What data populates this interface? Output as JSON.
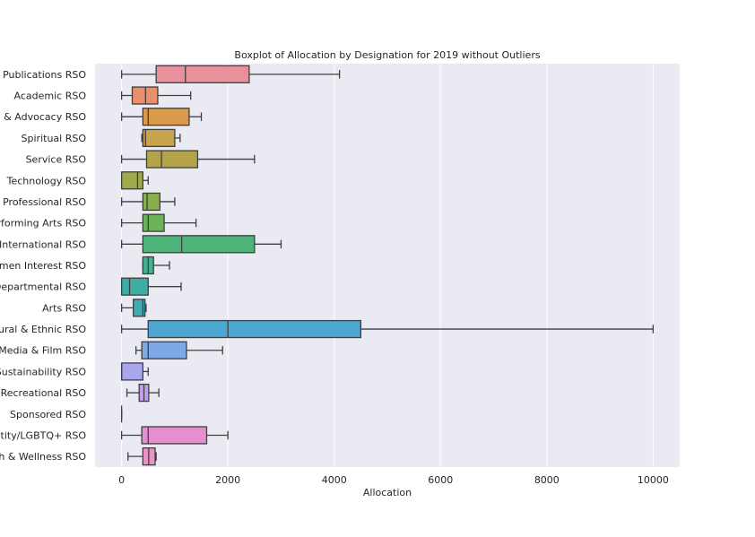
{
  "chart_data": {
    "type": "boxplot",
    "title": "Boxplot of Allocation by Designation for 2019 without Outliers",
    "xlabel": "Allocation",
    "ylabel": "",
    "xlim": [
      -500,
      10500
    ],
    "xticks": [
      0,
      2000,
      4000,
      6000,
      8000,
      10000
    ],
    "grid": true,
    "categories": [
      "Publications RSO",
      "Academic RSO",
      "al & Advocacy RSO",
      "Spiritual RSO",
      "Service RSO",
      "Technology RSO",
      "Professional RSO",
      "erforming Arts RSO",
      "y/International RSO",
      "Vomen Interest RSO",
      "Departmental RSO",
      "Arts RSO",
      "ltural & Ethnic RSO",
      "Media & Film RSO",
      "Sustainability RSO",
      "Recreational RSO",
      "Sponsored RSO",
      "entity/LGBTQ+ RSO",
      "th & Wellness RSO"
    ],
    "boxes": [
      {
        "min": 0,
        "q1": 650,
        "median": 1200,
        "q3": 2400,
        "max": 4100,
        "color": "#e8909c"
      },
      {
        "min": 0,
        "q1": 200,
        "median": 450,
        "q3": 680,
        "max": 1300,
        "color": "#e8906c"
      },
      {
        "min": 0,
        "q1": 400,
        "median": 500,
        "q3": 1270,
        "max": 1500,
        "color": "#d99a4c"
      },
      {
        "min": 380,
        "q1": 400,
        "median": 450,
        "q3": 1000,
        "max": 1100,
        "color": "#c9a24c"
      },
      {
        "min": 0,
        "q1": 470,
        "median": 750,
        "q3": 1430,
        "max": 2500,
        "color": "#b5a447"
      },
      {
        "min": 0,
        "q1": 0,
        "median": 300,
        "q3": 400,
        "max": 500,
        "color": "#a0aa48"
      },
      {
        "min": 0,
        "q1": 400,
        "median": 480,
        "q3": 720,
        "max": 1000,
        "color": "#88b04a"
      },
      {
        "min": 0,
        "q1": 400,
        "median": 500,
        "q3": 800,
        "max": 1400,
        "color": "#6bb25a"
      },
      {
        "min": 0,
        "q1": 400,
        "median": 1130,
        "q3": 2500,
        "max": 3000,
        "color": "#4db37a"
      },
      {
        "min": 400,
        "q1": 400,
        "median": 500,
        "q3": 600,
        "max": 900,
        "color": "#44b193"
      },
      {
        "min": 0,
        "q1": 0,
        "median": 150,
        "q3": 500,
        "max": 1120,
        "color": "#3fada4"
      },
      {
        "min": 0,
        "q1": 220,
        "median": 400,
        "q3": 440,
        "max": 460,
        "color": "#42aab4"
      },
      {
        "min": 0,
        "q1": 500,
        "median": 2000,
        "q3": 4500,
        "max": 10000,
        "color": "#4ca8d0"
      },
      {
        "min": 270,
        "q1": 380,
        "median": 500,
        "q3": 1220,
        "max": 1900,
        "color": "#7ea8e6"
      },
      {
        "min": 0,
        "q1": 0,
        "median": 0,
        "q3": 400,
        "max": 500,
        "color": "#a9a6ee"
      },
      {
        "min": 100,
        "q1": 330,
        "median": 420,
        "q3": 510,
        "max": 700,
        "color": "#c3a0ec"
      },
      {
        "min": 0,
        "q1": 0,
        "median": 0,
        "q3": 0,
        "max": 0,
        "color": "#d69ae0"
      },
      {
        "min": 0,
        "q1": 380,
        "median": 500,
        "q3": 1600,
        "max": 2000,
        "color": "#e68ed0"
      },
      {
        "min": 120,
        "q1": 400,
        "median": 510,
        "q3": 630,
        "max": 650,
        "color": "#e894c4"
      }
    ]
  }
}
